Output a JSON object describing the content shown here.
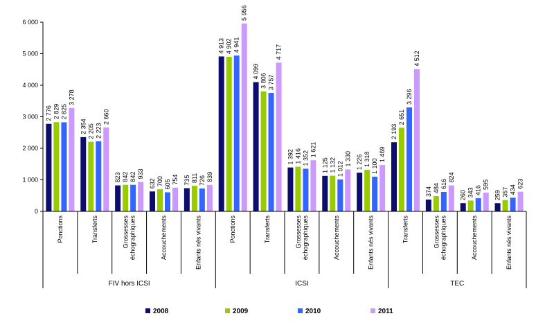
{
  "chart_data": {
    "type": "bar",
    "ylim": [
      0,
      6000
    ],
    "yticks": [
      0,
      1000,
      2000,
      3000,
      4000,
      5000,
      6000
    ],
    "ytick_labels": [
      "0",
      "1 000",
      "2 000",
      "3 000",
      "4 000",
      "5 000",
      "6 000"
    ],
    "legend_placement": "bottom",
    "grid": false,
    "series": [
      {
        "name": "2008",
        "color": "#0d0d6b"
      },
      {
        "name": "2009",
        "color": "#99cc00"
      },
      {
        "name": "2010",
        "color": "#3366ff"
      },
      {
        "name": "2011",
        "color": "#cc99ff"
      }
    ],
    "groups": [
      {
        "label": "FIV hors ICSI",
        "categories": [
          {
            "label": [
              "Ponctions"
            ],
            "values": [
              2776,
              2829,
              2825,
              3278
            ],
            "labels": [
              "2 776",
              "2 829",
              "2 825",
              "3 278"
            ]
          },
          {
            "label": [
              "Transferts"
            ],
            "values": [
              2354,
              2205,
              2223,
              2660
            ],
            "labels": [
              "2 354",
              "2 205",
              "2 223",
              "2 660"
            ]
          },
          {
            "label": [
              "Grossesses",
              "échographiques"
            ],
            "values": [
              823,
              842,
              842,
              933
            ],
            "labels": [
              "823",
              "842",
              "842",
              "933"
            ]
          },
          {
            "label": [
              "Accouchements"
            ],
            "values": [
              632,
              700,
              605,
              754
            ],
            "labels": [
              "632",
              "700",
              "605",
              "754"
            ]
          },
          {
            "label": [
              "Enfants nés vivants"
            ],
            "values": [
              735,
              811,
              726,
              839
            ],
            "labels": [
              "735",
              "811",
              "726",
              "839"
            ]
          }
        ]
      },
      {
        "label": "ICSI",
        "categories": [
          {
            "label": [
              "Ponctions"
            ],
            "values": [
              4913,
              4902,
              4941,
              5956
            ],
            "labels": [
              "4 913",
              "4 902",
              "4 941",
              "5 956"
            ]
          },
          {
            "label": [
              "Transferts"
            ],
            "values": [
              4099,
              3806,
              3757,
              4717
            ],
            "labels": [
              "4 099",
              "3 806",
              "3 757",
              "4 717"
            ]
          },
          {
            "label": [
              "Grossesses",
              "échographiques"
            ],
            "values": [
              1392,
              1416,
              1352,
              1621
            ],
            "labels": [
              "1 392",
              "1 416",
              "1 352",
              "1 621"
            ]
          },
          {
            "label": [
              "Accouchements"
            ],
            "values": [
              1125,
              1132,
              1012,
              1330
            ],
            "labels": [
              "1 125",
              "1 132",
              "1 012",
              "1 330"
            ]
          },
          {
            "label": [
              "Enfants nés vivants"
            ],
            "values": [
              1226,
              1318,
              1100,
              1469
            ],
            "labels": [
              "1 226",
              "1 318",
              "1 100",
              "1 469"
            ]
          }
        ]
      },
      {
        "label": "TEC",
        "categories": [
          {
            "label": [
              "Transferts"
            ],
            "values": [
              2193,
              2651,
              3296,
              4512
            ],
            "labels": [
              "2 193",
              "2 651",
              "3 296",
              "4 512"
            ]
          },
          {
            "label": [
              "Grossesses",
              "échographiques"
            ],
            "values": [
              374,
              484,
              616,
              824
            ],
            "labels": [
              "374",
              "484",
              "616",
              "824"
            ]
          },
          {
            "label": [
              "Accouchements"
            ],
            "values": [
              260,
              343,
              416,
              595
            ],
            "labels": [
              "260",
              "343",
              "416",
              "595"
            ]
          },
          {
            "label": [
              "Enfants nés vivants"
            ],
            "values": [
              259,
              357,
              434,
              623
            ],
            "labels": [
              "259",
              "357",
              "434",
              "623"
            ]
          }
        ]
      }
    ]
  }
}
